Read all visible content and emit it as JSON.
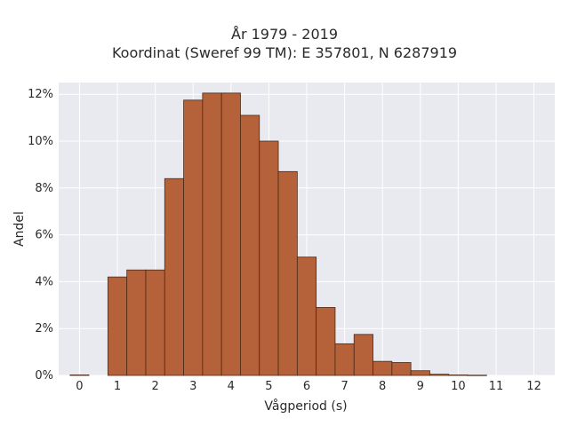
{
  "chart_data": {
    "type": "bar",
    "title": "År 1979 - 2019",
    "subtitle": "Koordinat (Sweref 99 TM): E 357801, N 6287919",
    "xlabel": "Vågperiod (s)",
    "ylabel": "Andel",
    "xlim": [
      -0.55,
      12.55
    ],
    "ylim": [
      0,
      12.5
    ],
    "grid": true,
    "x_ticks": [
      0,
      1,
      2,
      3,
      4,
      5,
      6,
      7,
      8,
      9,
      10,
      11,
      12
    ],
    "y_ticks": [
      0,
      2,
      4,
      6,
      8,
      10,
      12
    ],
    "y_tick_labels": [
      "0%",
      "2%",
      "4%",
      "6%",
      "8%",
      "10%",
      "12%"
    ],
    "bin_width": 0.5,
    "bars": [
      {
        "x": 0.0,
        "value": 0.02
      },
      {
        "x": 1.0,
        "value": 4.2
      },
      {
        "x": 1.5,
        "value": 4.5
      },
      {
        "x": 2.0,
        "value": 4.5
      },
      {
        "x": 2.5,
        "value": 8.4
      },
      {
        "x": 3.0,
        "value": 11.75
      },
      {
        "x": 3.5,
        "value": 12.05
      },
      {
        "x": 4.0,
        "value": 12.05
      },
      {
        "x": 4.5,
        "value": 11.1
      },
      {
        "x": 5.0,
        "value": 10.0
      },
      {
        "x": 5.5,
        "value": 8.7
      },
      {
        "x": 6.0,
        "value": 5.05
      },
      {
        "x": 6.5,
        "value": 2.9
      },
      {
        "x": 7.0,
        "value": 1.35
      },
      {
        "x": 7.5,
        "value": 1.75
      },
      {
        "x": 8.0,
        "value": 0.6
      },
      {
        "x": 8.5,
        "value": 0.55
      },
      {
        "x": 9.0,
        "value": 0.2
      },
      {
        "x": 9.5,
        "value": 0.05
      },
      {
        "x": 10.0,
        "value": 0.02
      },
      {
        "x": 10.5,
        "value": 0.01
      }
    ],
    "colors": {
      "bar_fill": "#b5623a",
      "bar_edge": "#4a2a18",
      "plot_bg": "#e9e9f0",
      "grid": "#ffffff"
    }
  }
}
